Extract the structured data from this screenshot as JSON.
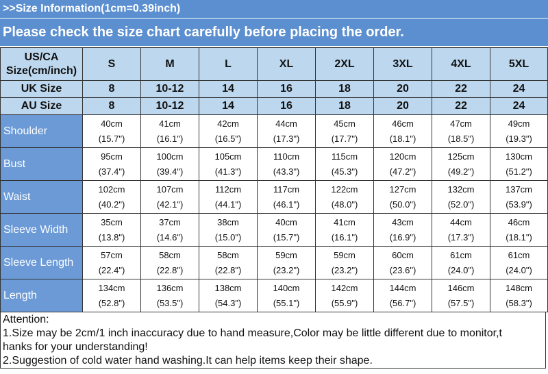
{
  "banner": {
    "title": ">>Size Information(1cm=0.39inch)",
    "subtitle": "Please check the size chart carefully before placing the order."
  },
  "table": {
    "corner_line1": "US/CA",
    "corner_line2": "Size(cm/inch)",
    "sizes": [
      "S",
      "M",
      "L",
      "XL",
      "2XL",
      "3XL",
      "4XL",
      "5XL"
    ],
    "uk_label": "UK Size",
    "uk": [
      "8",
      "10-12",
      "14",
      "16",
      "18",
      "20",
      "22",
      "24"
    ],
    "au_label": "AU Size",
    "au": [
      "8",
      "10-12",
      "14",
      "16",
      "18",
      "20",
      "22",
      "24"
    ],
    "rows": [
      {
        "label": "Shoulder",
        "cm": [
          "40cm",
          "41cm",
          "42cm",
          "44cm",
          "45cm",
          "46cm",
          "47cm",
          "49cm"
        ],
        "inch": [
          "(15.7\")",
          "(16.1\")",
          "(16.5\")",
          "(17.3\")",
          "(17.7\")",
          "(18.1\")",
          "(18.5\")",
          "(19.3\")"
        ]
      },
      {
        "label": "Bust",
        "cm": [
          "95cm",
          "100cm",
          "105cm",
          "110cm",
          "115cm",
          "120cm",
          "125cm",
          "130cm"
        ],
        "inch": [
          "(37.4\")",
          "(39.4\")",
          "(41.3\")",
          "(43.3\")",
          "(45.3\")",
          "(47.2\")",
          "(49.2\")",
          "(51.2\")"
        ]
      },
      {
        "label": "Waist",
        "cm": [
          "102cm",
          "107cm",
          "112cm",
          "117cm",
          "122cm",
          "127cm",
          "132cm",
          "137cm"
        ],
        "inch": [
          "(40.2\")",
          "(42.1\")",
          "(44.1\")",
          "(46.1\")",
          "(48.0\")",
          "(50.0\")",
          "(52.0\")",
          "(53.9\")"
        ]
      },
      {
        "label": "Sleeve Width",
        "cm": [
          "35cm",
          "37cm",
          "38cm",
          "40cm",
          "41cm",
          "43cm",
          "44cm",
          "46cm"
        ],
        "inch": [
          "(13.8\")",
          "(14.6\")",
          "(15.0\")",
          "(15.7\")",
          "(16.1\")",
          "(16.9\")",
          "(17.3\")",
          "(18.1\")"
        ]
      },
      {
        "label": "Sleeve Length",
        "cm": [
          "57cm",
          "58cm",
          "58cm",
          "59cm",
          "59cm",
          "60cm",
          "61cm",
          "61cm"
        ],
        "inch": [
          "(22.4\")",
          "(22.8\")",
          "(22.8\")",
          "(23.2\")",
          "(23.2\")",
          "(23.6\")",
          "(24.0\")",
          "(24.0\")"
        ]
      },
      {
        "label": "Length",
        "cm": [
          "134cm",
          "136cm",
          "138cm",
          "140cm",
          "142cm",
          "144cm",
          "146cm",
          "148cm"
        ],
        "inch": [
          "(52.8\")",
          "(53.5\")",
          "(54.3\")",
          "(55.1\")",
          "(55.9\")",
          "(56.7\")",
          "(57.5\")",
          "(58.3\")"
        ]
      }
    ]
  },
  "notes": {
    "heading": "Attention:",
    "line1": "1.Size may be 2cm/1 inch inaccuracy due to hand measure,Color may be little different due to monitor,t",
    "line2": "hanks for your understanding!",
    "line3": "2.Suggestion of cold water hand washing.It can help items keep their shape."
  },
  "colors": {
    "banner": "#5b8fd0",
    "header_cells": "#bdd7ee",
    "side_cells": "#6b9ad6"
  }
}
